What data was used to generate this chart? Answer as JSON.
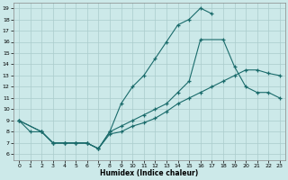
{
  "xlabel": "Humidex (Indice chaleur)",
  "bg_color": "#cce9e9",
  "grid_color": "#aacccc",
  "line_color": "#1a6b6b",
  "xlim": [
    -0.5,
    23.5
  ],
  "ylim": [
    5.5,
    19.5
  ],
  "xticks": [
    0,
    1,
    2,
    3,
    4,
    5,
    6,
    7,
    8,
    9,
    10,
    11,
    12,
    13,
    14,
    15,
    16,
    17,
    18,
    19,
    20,
    21,
    22,
    23
  ],
  "yticks": [
    6,
    7,
    8,
    9,
    10,
    11,
    12,
    13,
    14,
    15,
    16,
    17,
    18,
    19
  ],
  "line1_x": [
    0,
    1,
    2,
    3,
    4,
    5,
    6,
    7,
    8,
    9,
    10,
    11,
    12,
    13,
    14,
    15,
    16,
    17
  ],
  "line1_y": [
    9,
    8,
    8,
    7,
    7,
    7,
    7,
    6.5,
    8,
    10.5,
    12,
    13,
    14.5,
    16,
    17.5,
    18,
    19,
    18.5
  ],
  "line2_x": [
    0,
    2,
    3,
    4,
    5,
    6,
    7,
    8,
    9,
    10,
    11,
    12,
    13,
    14,
    15,
    16,
    18,
    19,
    20,
    21,
    22,
    23
  ],
  "line2_y": [
    9,
    8,
    7,
    7,
    7,
    7,
    6.5,
    8,
    8.5,
    9,
    9.5,
    10,
    10.5,
    11.5,
    12.5,
    16.2,
    16.2,
    13.8,
    12,
    11.5,
    11.5,
    11
  ],
  "line3_x": [
    0,
    2,
    3,
    4,
    5,
    6,
    7,
    8,
    9,
    10,
    11,
    12,
    13,
    14,
    15,
    16,
    17,
    18,
    19,
    20,
    21,
    22,
    23
  ],
  "line3_y": [
    9,
    8,
    7,
    7,
    7,
    7,
    6.5,
    7.8,
    8,
    8.5,
    8.8,
    9.2,
    9.8,
    10.5,
    11,
    11.5,
    12,
    12.5,
    13,
    13.5,
    13.5,
    13.2,
    13
  ]
}
